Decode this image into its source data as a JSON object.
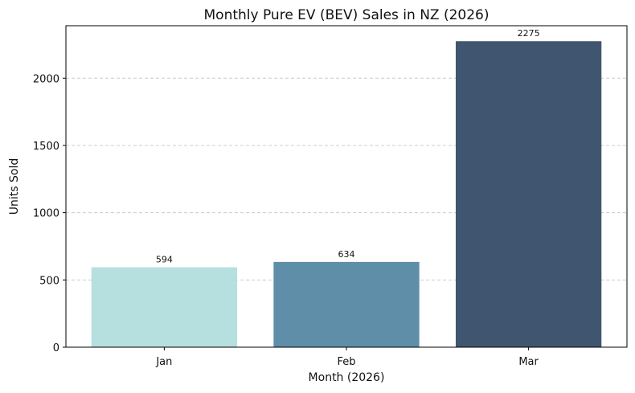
{
  "chart_data": {
    "type": "bar",
    "title": "Monthly Pure EV (BEV) Sales in NZ (2026)",
    "xlabel": "Month (2026)",
    "ylabel": "Units Sold",
    "categories": [
      "Jan",
      "Feb",
      "Mar"
    ],
    "values": [
      594,
      634,
      2275
    ],
    "data_labels": [
      "594",
      "634",
      "2275"
    ],
    "bar_colors": [
      "#b6dfe0",
      "#5f8ea9",
      "#405570"
    ],
    "ylim": [
      0,
      2390
    ],
    "yticks": [
      0,
      500,
      1000,
      1500,
      2000
    ],
    "ytick_labels": [
      "0",
      "500",
      "1000",
      "1500",
      "2000"
    ],
    "grid": "y-dashed",
    "legend": "none"
  }
}
